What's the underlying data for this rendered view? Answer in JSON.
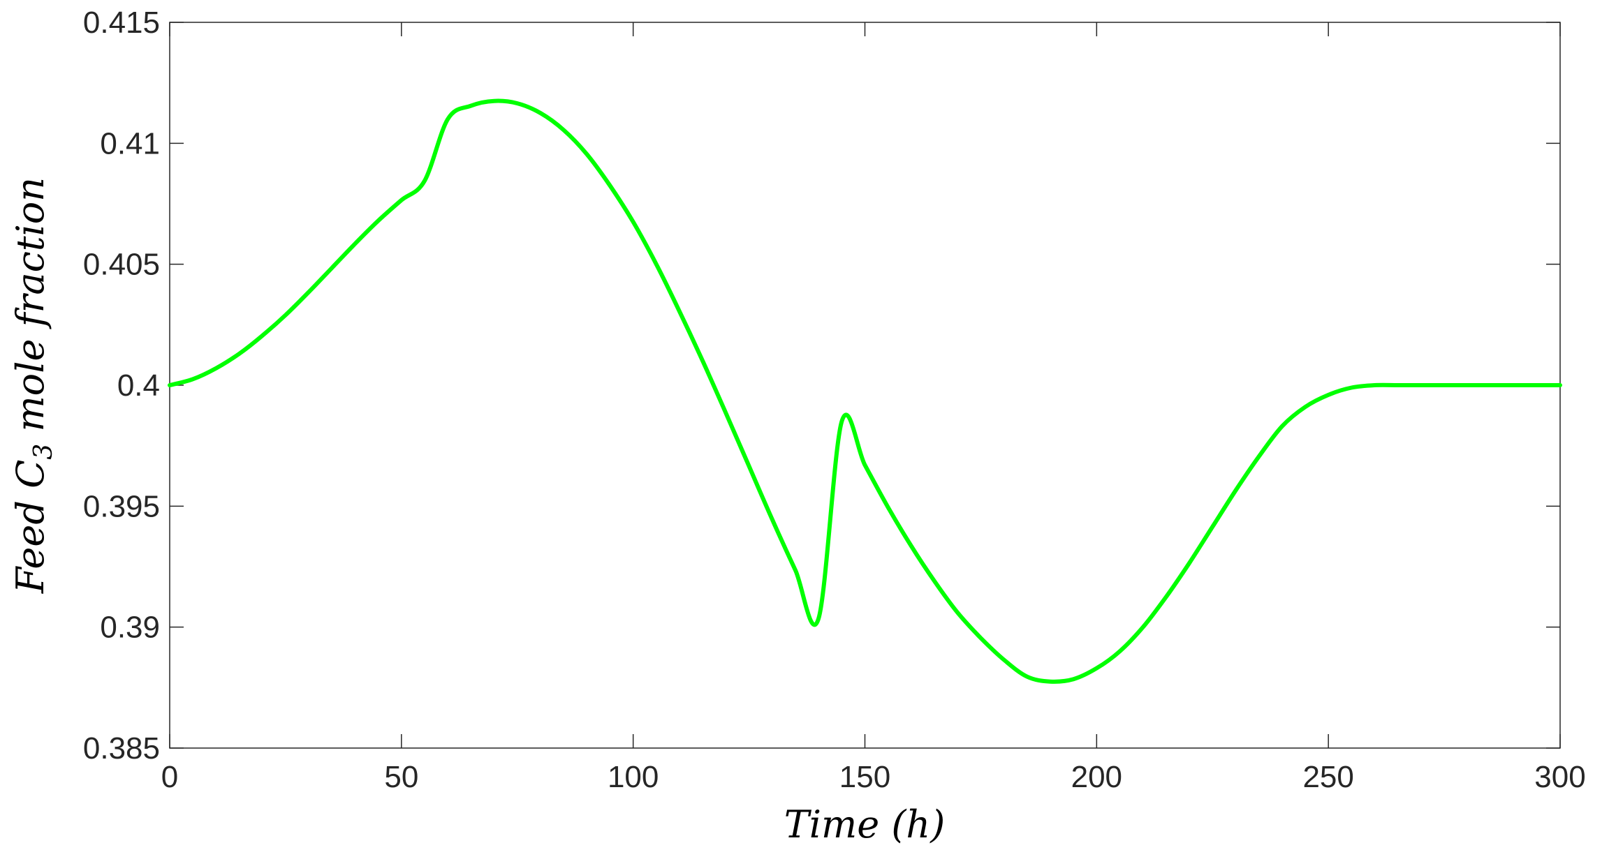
{
  "chart_data": {
    "type": "line",
    "title": "",
    "xlabel": "Time (h)",
    "ylabel_parts": [
      "Feed ",
      "C",
      "3",
      " mole fraction"
    ],
    "xlim": [
      0,
      300
    ],
    "ylim": [
      0.385,
      0.415
    ],
    "xticks": [
      0,
      50,
      100,
      150,
      200,
      250,
      300
    ],
    "xtick_labels": [
      "0",
      "50",
      "100",
      "150",
      "200",
      "250",
      "300"
    ],
    "yticks": [
      0.385,
      0.39,
      0.395,
      0.4,
      0.405,
      0.41,
      0.415
    ],
    "ytick_labels": [
      "0.385",
      "0.39",
      "0.395",
      "0.4",
      "0.405",
      "0.41",
      "0.415"
    ],
    "grid": false,
    "legend": "none",
    "series": [
      {
        "color": "#00ff00",
        "x": [
          0,
          5,
          10,
          15,
          20,
          25,
          30,
          35,
          40,
          45,
          50,
          55,
          60,
          65,
          70,
          75,
          80,
          85,
          90,
          95,
          100,
          105,
          110,
          115,
          120,
          125,
          130,
          135,
          140,
          145,
          150,
          155,
          160,
          165,
          170,
          175,
          180,
          185,
          190,
          195,
          200,
          205,
          210,
          215,
          220,
          225,
          230,
          235,
          240,
          245,
          250,
          255,
          260,
          265,
          270,
          275,
          280,
          285,
          290,
          295,
          300
        ],
        "y": [
          0.4,
          0.40025,
          0.4007,
          0.4013,
          0.40205,
          0.4029,
          0.40385,
          0.40485,
          0.40585,
          0.4068,
          0.40765,
          0.40845,
          0.411,
          0.41155,
          0.41175,
          0.41165,
          0.41125,
          0.41055,
          0.40955,
          0.40825,
          0.40675,
          0.405,
          0.40305,
          0.401,
          0.39885,
          0.39665,
          0.39445,
          0.39235,
          0.39035,
          0.3985,
          0.3967,
          0.39495,
          0.39335,
          0.3919,
          0.3906,
          0.38955,
          0.38865,
          0.38795,
          0.38775,
          0.38785,
          0.3883,
          0.389,
          0.39,
          0.39125,
          0.39265,
          0.39415,
          0.39565,
          0.39705,
          0.3983,
          0.3991,
          0.3996,
          0.3999,
          0.4,
          0.4,
          0.4,
          0.4,
          0.4,
          0.4,
          0.4,
          0.4,
          0.4
        ]
      }
    ]
  }
}
